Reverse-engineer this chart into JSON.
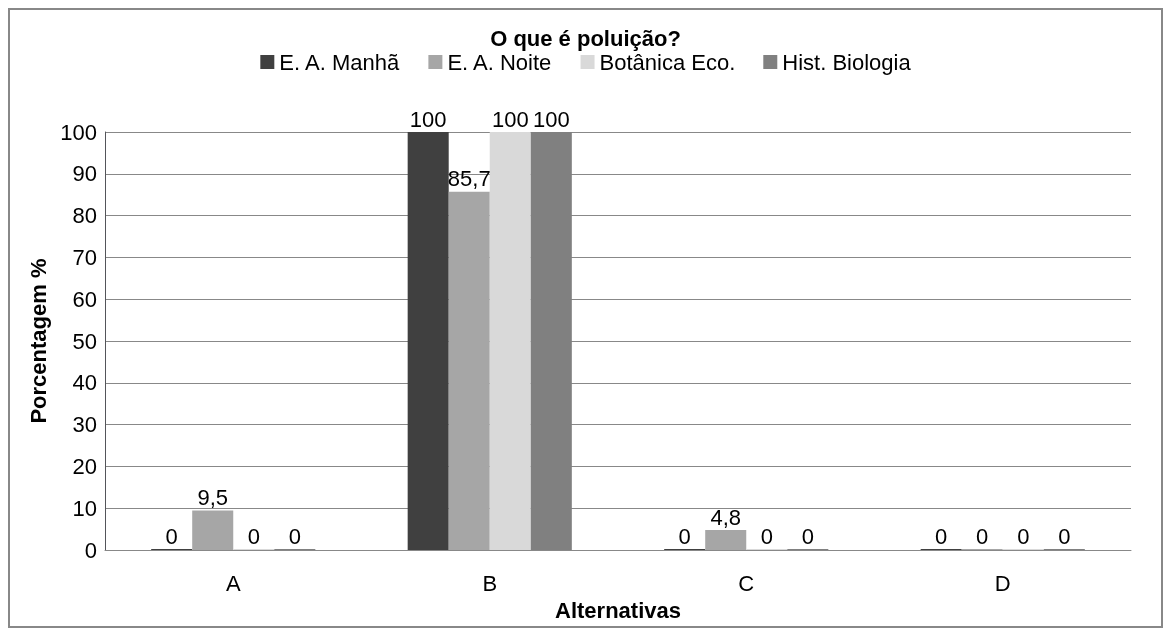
{
  "chart_data": {
    "type": "bar",
    "title": "O que é poluição?",
    "xlabel": "Alternativas",
    "ylabel": "Porcentagem %",
    "categories": [
      "A",
      "B",
      "C",
      "D"
    ],
    "series": [
      {
        "name": "E. A. Manhã",
        "color": "#404040",
        "values": [
          0,
          100,
          0,
          0
        ],
        "value_labels": [
          "0",
          "100",
          "0",
          "0"
        ]
      },
      {
        "name": "E. A. Noite",
        "color": "#a6a6a6",
        "values": [
          9.5,
          85.7,
          4.8,
          0
        ],
        "value_labels": [
          "9,5",
          "85,7",
          "4,8",
          "0"
        ]
      },
      {
        "name": "Botânica Eco.",
        "color": "#d9d9d9",
        "values": [
          0,
          100,
          0,
          0
        ],
        "value_labels": [
          "0",
          "100",
          "0",
          "0"
        ]
      },
      {
        "name": "Hist. Biologia",
        "color": "#808080",
        "values": [
          0,
          100,
          0,
          0
        ],
        "value_labels": [
          "0",
          "100",
          "0",
          "0"
        ]
      }
    ],
    "ylim": [
      0,
      100
    ],
    "yticks": [
      0,
      10,
      20,
      30,
      40,
      50,
      60,
      70,
      80,
      90,
      100
    ],
    "grid": "y",
    "legend": "top"
  }
}
